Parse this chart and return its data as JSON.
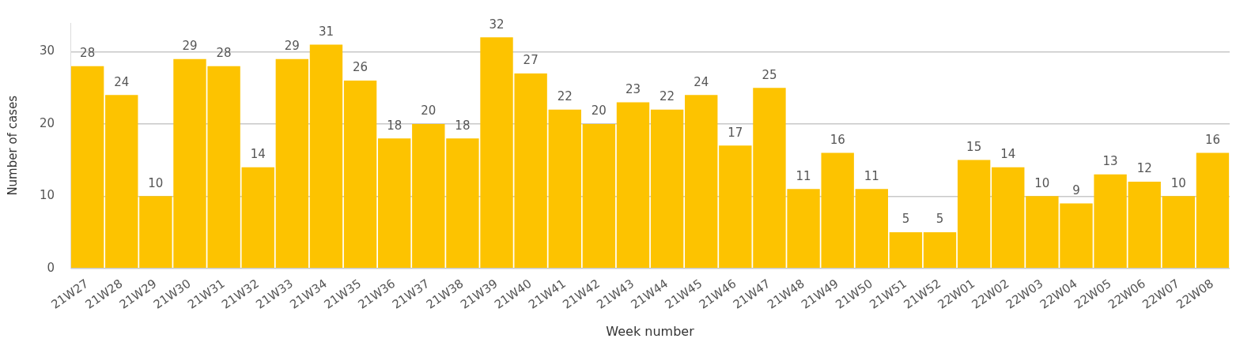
{
  "chart_data": {
    "type": "bar",
    "xlabel": "Week number",
    "ylabel": "Number of cases",
    "categories": [
      "21W27",
      "21W28",
      "21W29",
      "21W30",
      "21W31",
      "21W32",
      "21W33",
      "21W34",
      "21W35",
      "21W36",
      "21W37",
      "21W38",
      "21W39",
      "21W40",
      "21W41",
      "21W42",
      "21W43",
      "21W44",
      "21W45",
      "21W46",
      "21W47",
      "21W48",
      "21W49",
      "21W50",
      "21W51",
      "21W52",
      "22W01",
      "22W02",
      "22W03",
      "22W04",
      "22W05",
      "22W06",
      "22W07",
      "22W08"
    ],
    "values": [
      28,
      24,
      10,
      29,
      28,
      14,
      29,
      31,
      26,
      18,
      20,
      18,
      32,
      27,
      22,
      20,
      23,
      22,
      24,
      17,
      25,
      11,
      16,
      11,
      5,
      5,
      15,
      14,
      10,
      9,
      13,
      12,
      10,
      16
    ],
    "color": "#fdc300",
    "ylim": [
      0,
      34
    ],
    "yticks": [
      0,
      10,
      20,
      30
    ],
    "grid": "y",
    "data_labels": true,
    "legend": false
  }
}
